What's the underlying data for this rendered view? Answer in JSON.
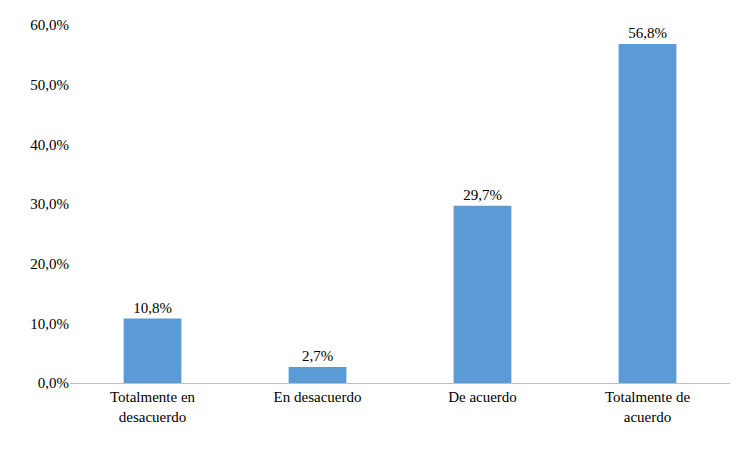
{
  "chart_data": {
    "type": "bar",
    "categories": [
      "Totalmente en desacuerdo",
      "En desacuerdo",
      "De acuerdo",
      "Totalmente de acuerdo"
    ],
    "values": [
      10.8,
      2.7,
      29.7,
      56.8
    ],
    "value_labels": [
      "10,8%",
      "2,7%",
      "29,7%",
      "56,8%"
    ],
    "color": "#5b9bd5",
    "ylim": [
      0,
      60
    ],
    "yticks": [
      {
        "value": 0,
        "label": "0,0%"
      },
      {
        "value": 10,
        "label": "10,0%"
      },
      {
        "value": 20,
        "label": "20,0%"
      },
      {
        "value": 30,
        "label": "30,0%"
      },
      {
        "value": 40,
        "label": "40,0%"
      },
      {
        "value": 50,
        "label": "50,0%"
      },
      {
        "value": 60,
        "label": "60,0%"
      }
    ],
    "grid": false,
    "data_labels": true
  }
}
